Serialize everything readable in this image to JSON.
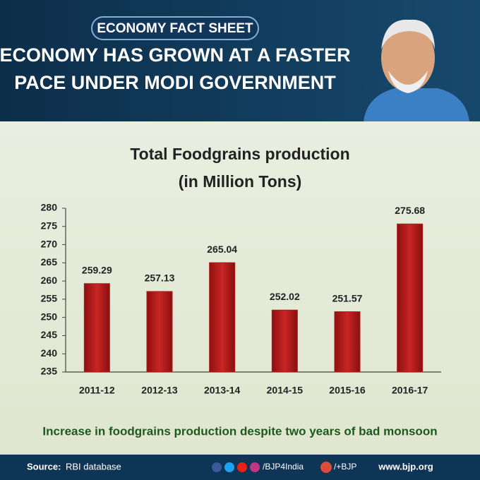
{
  "header": {
    "badge": "ECONOMY FACT SHEET",
    "headline_1": "ECONOMY HAS GROWN AT A FASTER",
    "headline_2": "PACE UNDER MODI GOVERNMENT"
  },
  "chart_data": {
    "type": "bar",
    "title": "Total Foodgrains production",
    "subtitle": "(in Million Tons)",
    "categories": [
      "2011-12",
      "2012-13",
      "2013-14",
      "2014-15",
      "2015-16",
      "2016-17"
    ],
    "values": [
      259.29,
      257.13,
      265.04,
      252.02,
      251.57,
      275.68
    ],
    "color": "#b01c1c",
    "ylim": [
      235,
      280
    ],
    "yticks": [
      235,
      240,
      245,
      250,
      255,
      260,
      265,
      270,
      275,
      280
    ]
  },
  "caption": "Increase in foodgrains production despite two years of bad monsoon",
  "footer": {
    "source_label": "Source:",
    "source": "RBI database",
    "social_1": "/BJP4India",
    "social_2": "/+BJP",
    "website": "www.bjp.org"
  }
}
